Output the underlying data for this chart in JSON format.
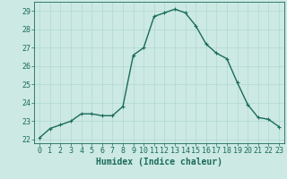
{
  "x": [
    0,
    1,
    2,
    3,
    4,
    5,
    6,
    7,
    8,
    9,
    10,
    11,
    12,
    13,
    14,
    15,
    16,
    17,
    18,
    19,
    20,
    21,
    22,
    23
  ],
  "y": [
    22.1,
    22.6,
    22.8,
    23.0,
    23.4,
    23.4,
    23.3,
    23.3,
    23.8,
    26.6,
    27.0,
    28.7,
    28.9,
    29.1,
    28.9,
    28.2,
    27.2,
    26.7,
    26.4,
    25.1,
    23.9,
    23.2,
    23.1,
    22.7
  ],
  "line_color": "#1a6b5a",
  "marker": "+",
  "marker_size": 3,
  "background_color": "#cce9e4",
  "grid_color": "#aad4ce",
  "xlabel": "Humidex (Indice chaleur)",
  "ylim": [
    21.8,
    29.5
  ],
  "xlim": [
    -0.5,
    23.5
  ],
  "yticks": [
    22,
    23,
    24,
    25,
    26,
    27,
    28,
    29
  ],
  "xticks": [
    0,
    1,
    2,
    3,
    4,
    5,
    6,
    7,
    8,
    9,
    10,
    11,
    12,
    13,
    14,
    15,
    16,
    17,
    18,
    19,
    20,
    21,
    22,
    23
  ],
  "tick_label_color": "#1a6b5a",
  "xlabel_fontsize": 7,
  "tick_fontsize": 6,
  "line_width": 1.0,
  "spine_color": "#1a6b5a"
}
